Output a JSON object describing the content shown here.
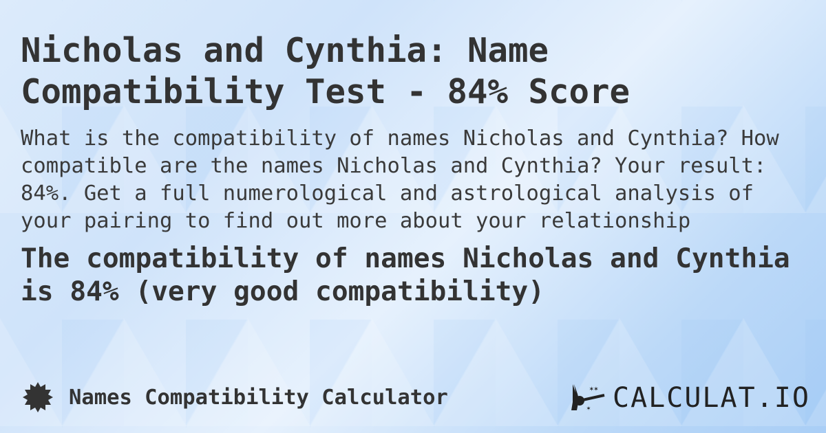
{
  "page": {
    "title": "Nicholas and Cynthia: Name Compatibility Test - 84% Score",
    "description": "What is the compatibility of names Nicholas and Cynthia? How compatible are the names Nicholas and Cynthia? Your result: 84%. Get a full numerological and astrological analysis of your pairing to find out more about your relationship",
    "result": "The compatibility of names Nicholas and Cynthia is 84% (very good compatibility)"
  },
  "footer": {
    "calculator_name": "Names Compatibility Calculator",
    "calculator_icon": "badge-icon",
    "logo_text": "CALCULAT.IO",
    "logo_icon": "magic-wand-hand-icon"
  }
}
